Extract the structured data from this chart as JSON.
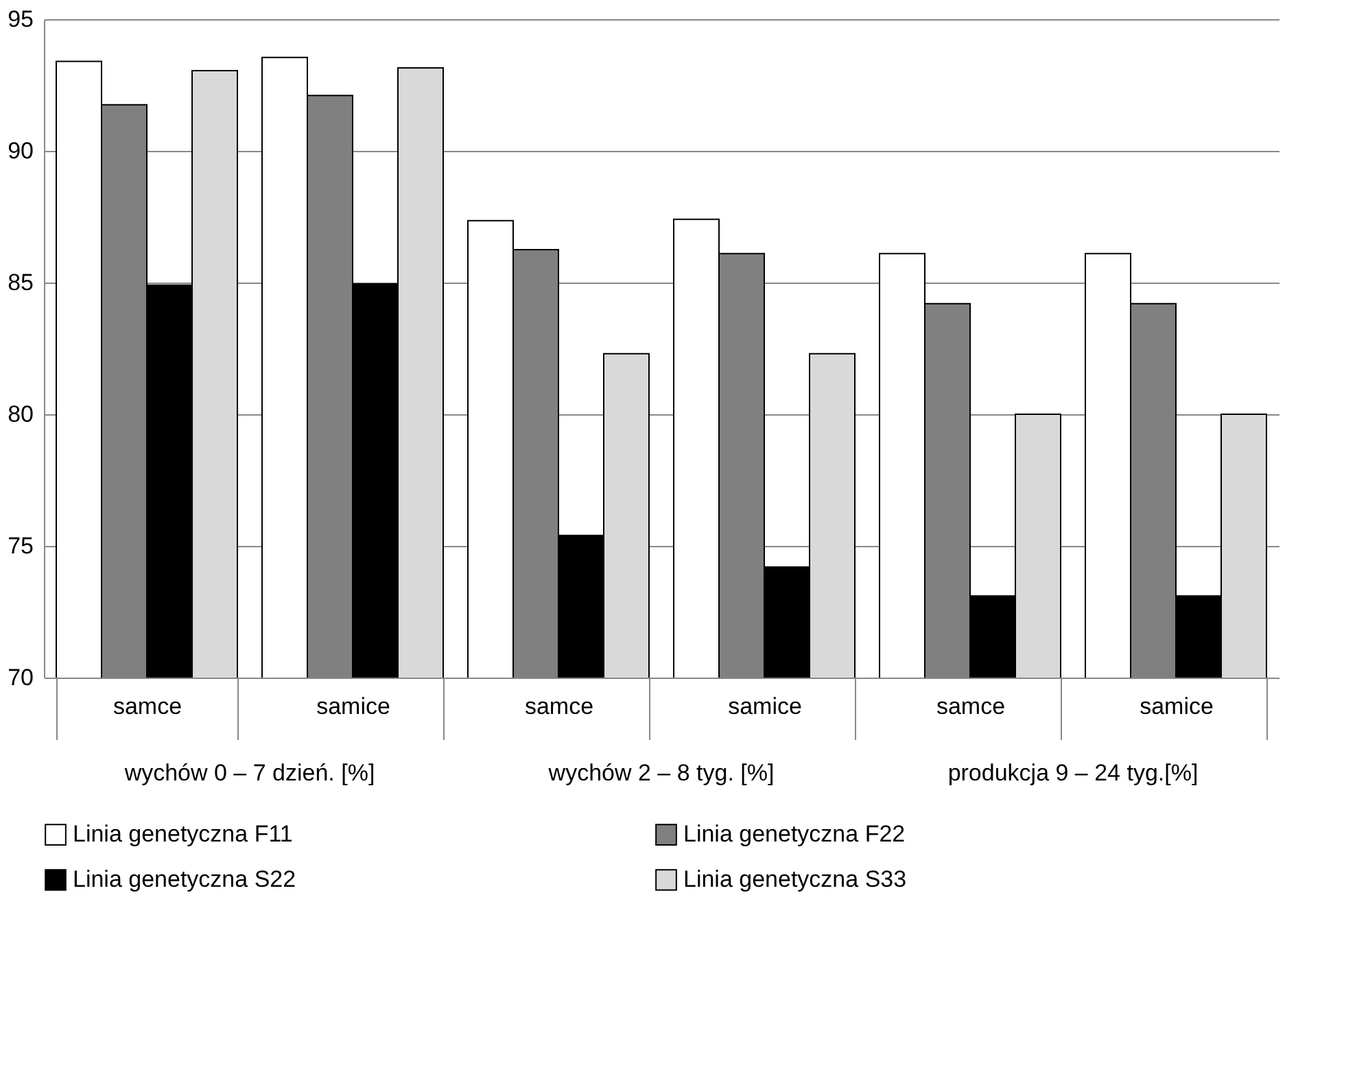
{
  "chart_data": {
    "type": "bar",
    "categories": [
      "samce",
      "samice",
      "samce",
      "samice",
      "samce",
      "samice"
    ],
    "series": [
      {
        "name": "Linia genetyczna F11",
        "color": "#ffffff",
        "values": [
          93.4,
          93.55,
          87.35,
          87.4,
          86.1,
          86.1
        ]
      },
      {
        "name": "Linia genetyczna F22",
        "color": "#808080",
        "values": [
          91.75,
          92.1,
          86.25,
          86.1,
          84.2,
          84.2
        ]
      },
      {
        "name": "Linia genetyczna S22",
        "color": "#000000",
        "values": [
          84.9,
          84.95,
          75.4,
          74.2,
          73.1,
          73.1
        ]
      },
      {
        "name": "Linia genetyczna S33",
        "color": "#d9d9d9",
        "values": [
          93.05,
          93.15,
          82.3,
          82.3,
          80.0,
          80.0
        ]
      }
    ],
    "annotations": [
      "wychów 0 – 7 dzień. [%]",
      "wychów 2 – 8 tyg. [%]",
      "produkcja 9 – 24 tyg.[%]"
    ],
    "ylim": [
      70,
      95
    ],
    "yticks": [
      70,
      75,
      80,
      85,
      90,
      95
    ],
    "grid": "y",
    "legend": "bottom"
  }
}
